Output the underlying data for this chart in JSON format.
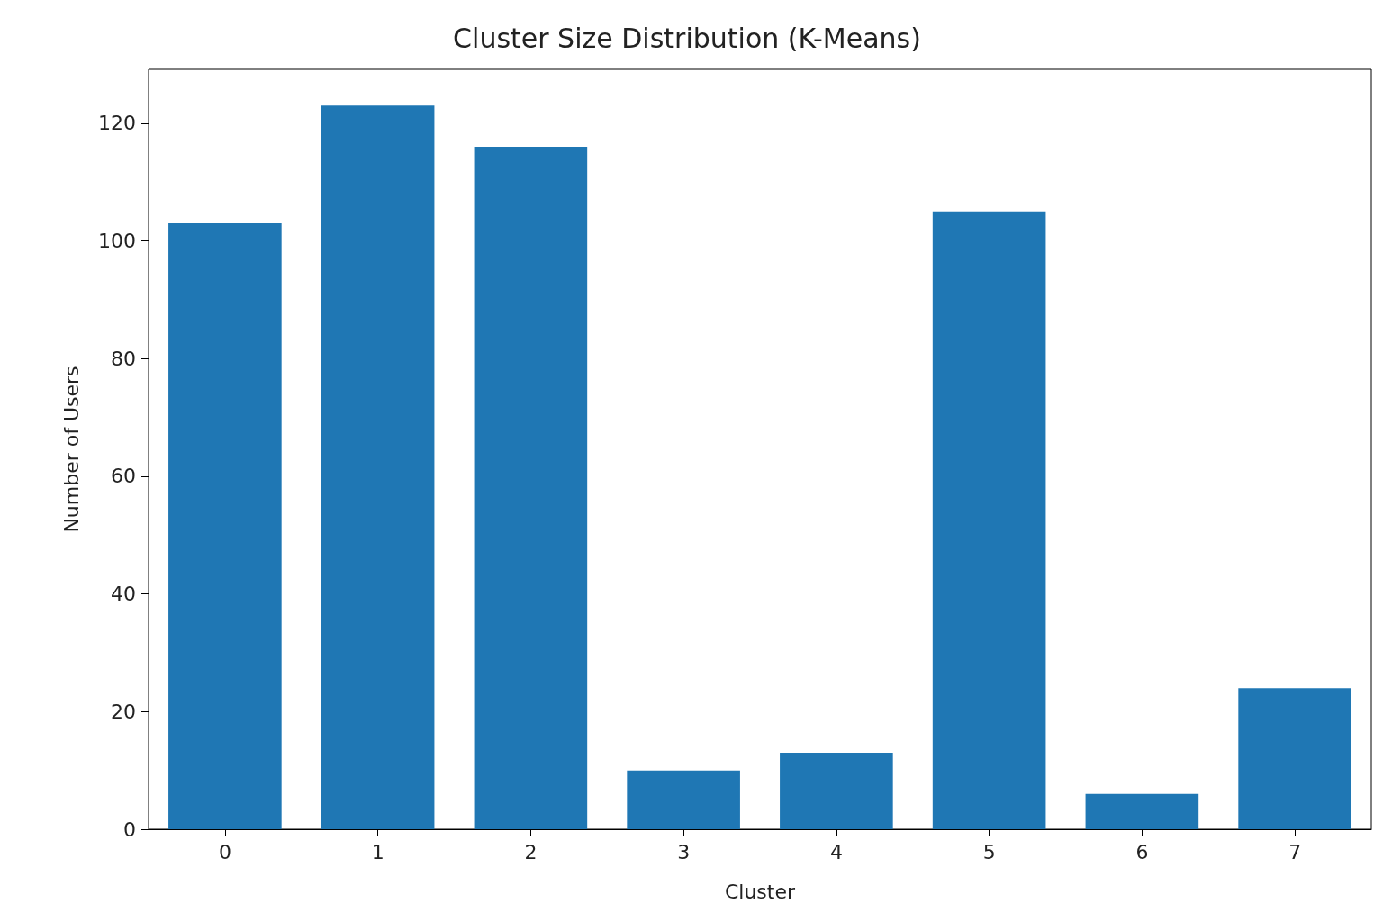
{
  "chart_data": {
    "type": "bar",
    "title": "Cluster Size Distribution (K-Means)",
    "xlabel": "Cluster",
    "ylabel": "Number of Users",
    "categories": [
      "0",
      "1",
      "2",
      "3",
      "4",
      "5",
      "6",
      "7"
    ],
    "values": [
      103,
      123,
      116,
      10,
      13,
      105,
      6,
      24
    ],
    "color": "#1f77b4",
    "ylim": [
      0,
      129.15
    ],
    "yticks": [
      0,
      20,
      40,
      60,
      80,
      100,
      120
    ],
    "grid": false
  }
}
